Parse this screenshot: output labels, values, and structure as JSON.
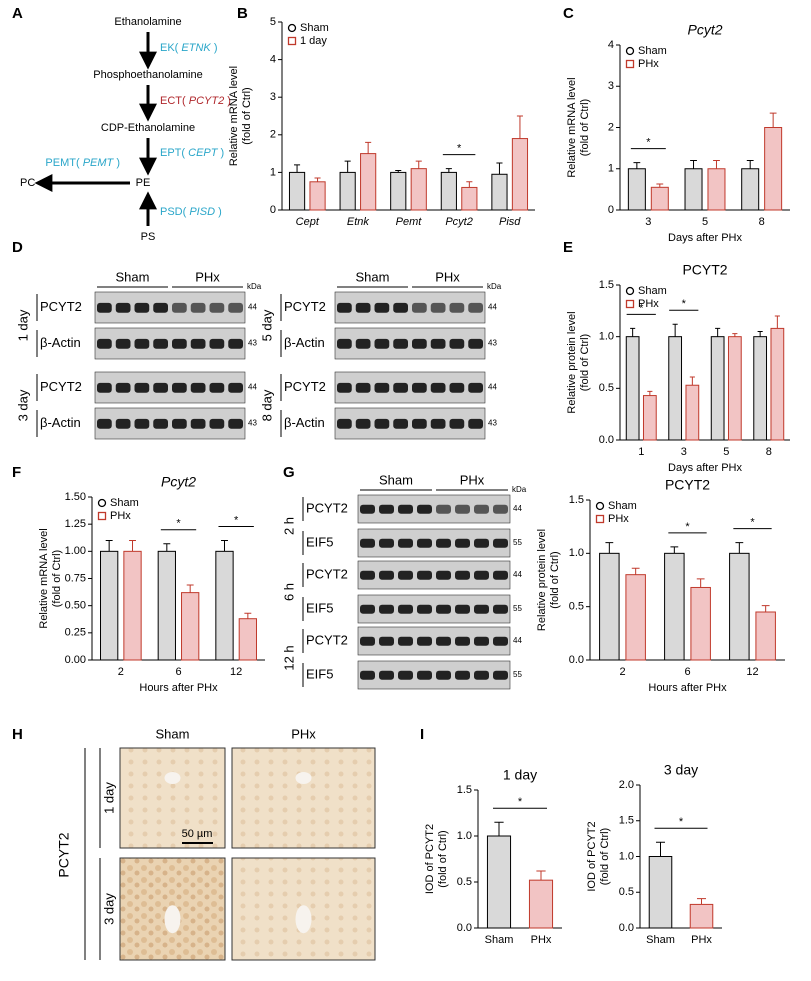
{
  "panels": [
    "A",
    "B",
    "C",
    "D",
    "E",
    "F",
    "G",
    "H",
    "I"
  ],
  "pathway": {
    "nodes": [
      "Ethanolamine",
      "Phosphoethanolamine",
      "CDP-Ethanolamine",
      "PE",
      "PC",
      "PS"
    ],
    "enzymes": [
      {
        "open": "EK(",
        "gene": "ETNK",
        "close": ")",
        "color": "#2aa6c9"
      },
      {
        "open": "ECT(",
        "gene": "PCYT2",
        "close": ")",
        "color": "#b0282d"
      },
      {
        "open": "EPT(",
        "gene": "CEPT",
        "close": ")",
        "color": "#2aa6c9"
      },
      {
        "open": "PEMT(",
        "gene": "PEMT",
        "close": ")",
        "color": "#2aa6c9"
      },
      {
        "open": "PSD(",
        "gene": "PISD",
        "close": ")",
        "color": "#2aa6c9"
      }
    ]
  },
  "blots_d": {
    "left": {
      "groups": [
        "Sham",
        "PHx"
      ],
      "unit": "kDa",
      "blocks": [
        {
          "time": "1 day",
          "rows": [
            {
              "protein": "PCYT2",
              "kda": 44
            },
            {
              "protein": "β-Actin",
              "kda": 43
            }
          ]
        },
        {
          "time": "3 day",
          "rows": [
            {
              "protein": "PCYT2",
              "kda": 44
            },
            {
              "protein": "β-Actin",
              "kda": 43
            }
          ]
        }
      ]
    },
    "right": {
      "groups": [
        "Sham",
        "PHx"
      ],
      "unit": "kDa",
      "blocks": [
        {
          "time": "5 day",
          "rows": [
            {
              "protein": "PCYT2",
              "kda": 44
            },
            {
              "protein": "β-Actin",
              "kda": 43
            }
          ]
        },
        {
          "time": "8 day",
          "rows": [
            {
              "protein": "PCYT2",
              "kda": 44
            },
            {
              "protein": "β-Actin",
              "kda": 43
            }
          ]
        }
      ]
    }
  },
  "blots_g": {
    "groups": [
      "Sham",
      "PHx"
    ],
    "unit": "kDa",
    "blocks": [
      {
        "time": "2 h",
        "rows": [
          {
            "protein": "PCYT2",
            "kda": 44
          },
          {
            "protein": "EIF5",
            "kda": 55
          }
        ]
      },
      {
        "time": "6 h",
        "rows": [
          {
            "protein": "PCYT2",
            "kda": 44
          },
          {
            "protein": "EIF5",
            "kda": 55
          }
        ]
      },
      {
        "time": "12 h",
        "rows": [
          {
            "protein": "PCYT2",
            "kda": 44
          },
          {
            "protein": "EIF5",
            "kda": 55
          }
        ]
      }
    ]
  },
  "histology": {
    "columns": [
      "Sham",
      "PHx"
    ],
    "rows": [
      "1 day",
      "3 day"
    ],
    "stain": "PCYT2",
    "scale": "50 µm"
  },
  "chart_data": [
    {
      "type": "bar",
      "ylabel": [
        "Relative mRNA level",
        "(fold of Ctrl)"
      ],
      "categories": [
        "Cept",
        "Etnk",
        "Pemt",
        "Pcyt2",
        "Pisd"
      ],
      "category_italic": true,
      "series": [
        {
          "name": "Sham",
          "color": "#000000",
          "fill": "#d9d9d9",
          "marker": "circle",
          "values": [
            1.0,
            1.0,
            1.0,
            1.0,
            0.95
          ],
          "errors": [
            0.2,
            0.3,
            0.05,
            0.1,
            0.3
          ]
        },
        {
          "name": "1 day",
          "color": "#c0392b",
          "fill": "#f2c4c4",
          "marker": "square",
          "values": [
            0.75,
            1.5,
            1.1,
            0.6,
            1.9
          ],
          "errors": [
            0.1,
            0.3,
            0.2,
            0.15,
            0.6
          ]
        }
      ],
      "ylim": [
        0,
        5
      ],
      "yticks": [
        0,
        1,
        2,
        3,
        4,
        5
      ],
      "annotations": [
        {
          "text": "*",
          "category": "Pcyt2"
        }
      ]
    },
    {
      "type": "bar",
      "title": "Pcyt2",
      "title_italic": true,
      "ylabel": [
        "Relative mRNA level",
        "(fold of Ctrl)"
      ],
      "xlabel": "Days after PHx",
      "categories": [
        "3",
        "5",
        "8"
      ],
      "series": [
        {
          "name": "Sham",
          "color": "#000000",
          "fill": "#d9d9d9",
          "marker": "circle",
          "values": [
            1.0,
            1.0,
            1.0
          ],
          "errors": [
            0.15,
            0.2,
            0.2
          ]
        },
        {
          "name": "PHx",
          "color": "#c0392b",
          "fill": "#f2c4c4",
          "marker": "square",
          "values": [
            0.55,
            1.0,
            2.0
          ],
          "errors": [
            0.08,
            0.2,
            0.35
          ]
        }
      ],
      "ylim": [
        0,
        4
      ],
      "yticks": [
        0,
        1,
        2,
        3,
        4
      ],
      "annotations": [
        {
          "text": "*",
          "category": "3"
        }
      ]
    },
    {
      "type": "bar",
      "title": "PCYT2",
      "ylabel": [
        "Relative protein level",
        "(fold of Ctrl)"
      ],
      "xlabel": "Days after PHx",
      "categories": [
        "1",
        "3",
        "5",
        "8"
      ],
      "series": [
        {
          "name": "Sham",
          "color": "#000000",
          "fill": "#d9d9d9",
          "marker": "circle",
          "values": [
            1.0,
            1.0,
            1.0,
            1.0
          ],
          "errors": [
            0.08,
            0.12,
            0.08,
            0.05
          ]
        },
        {
          "name": "PHx",
          "color": "#c0392b",
          "fill": "#f2c4c4",
          "marker": "square",
          "values": [
            0.43,
            0.53,
            1.0,
            1.08
          ],
          "errors": [
            0.04,
            0.08,
            0.03,
            0.12
          ]
        }
      ],
      "ylim": [
        0,
        1.5
      ],
      "yticks": [
        {
          "value": 0,
          "label": "0.0"
        },
        {
          "value": 0.5,
          "label": "0.5"
        },
        {
          "value": 1,
          "label": "1.0"
        },
        {
          "value": 1.5,
          "label": "1.5"
        }
      ],
      "annotations": [
        {
          "text": "*",
          "category": "1"
        },
        {
          "text": "*",
          "category": "3"
        }
      ]
    },
    {
      "type": "bar",
      "title": "Pcyt2",
      "title_italic": true,
      "ylabel": [
        "Relative mRNA level",
        "(fold of Ctrl)"
      ],
      "xlabel": "Hours after PHx",
      "categories": [
        "2",
        "6",
        "12"
      ],
      "series": [
        {
          "name": "Sham",
          "color": "#000000",
          "fill": "#d9d9d9",
          "marker": "circle",
          "values": [
            1.0,
            1.0,
            1.0
          ],
          "errors": [
            0.1,
            0.07,
            0.1
          ]
        },
        {
          "name": "PHx",
          "color": "#c0392b",
          "fill": "#f2c4c4",
          "marker": "square",
          "values": [
            1.0,
            0.62,
            0.38
          ],
          "errors": [
            0.1,
            0.07,
            0.05
          ]
        }
      ],
      "ylim": [
        0,
        1.5
      ],
      "yticks": [
        {
          "value": 0,
          "label": "0.00"
        },
        {
          "value": 0.25,
          "label": "0.25"
        },
        {
          "value": 0.5,
          "label": "0.50"
        },
        {
          "value": 0.75,
          "label": "0.75"
        },
        {
          "value": 1,
          "label": "1.00"
        },
        {
          "value": 1.25,
          "label": "1.25"
        },
        {
          "value": 1.5,
          "label": "1.50"
        }
      ],
      "annotations": [
        {
          "text": "*",
          "category": "6"
        },
        {
          "text": "*",
          "category": "12"
        }
      ]
    },
    {
      "type": "bar",
      "title": "PCYT2",
      "ylabel": [
        "Relative protein level",
        "(fold of Ctrl)"
      ],
      "xlabel": "Hours after PHx",
      "categories": [
        "2",
        "6",
        "12"
      ],
      "series": [
        {
          "name": "Sham",
          "color": "#000000",
          "fill": "#d9d9d9",
          "marker": "circle",
          "values": [
            1.0,
            1.0,
            1.0
          ],
          "errors": [
            0.1,
            0.06,
            0.1
          ]
        },
        {
          "name": "PHx",
          "color": "#c0392b",
          "fill": "#f2c4c4",
          "marker": "square",
          "values": [
            0.8,
            0.68,
            0.45
          ],
          "errors": [
            0.06,
            0.08,
            0.06
          ]
        }
      ],
      "ylim": [
        0,
        1.5
      ],
      "yticks": [
        {
          "value": 0,
          "label": "0.0"
        },
        {
          "value": 0.5,
          "label": "0.5"
        },
        {
          "value": 1,
          "label": "1.0"
        },
        {
          "value": 1.5,
          "label": "1.5"
        }
      ],
      "annotations": [
        {
          "text": "*",
          "category": "6"
        },
        {
          "text": "*",
          "category": "12"
        }
      ]
    },
    {
      "type": "bar",
      "title": "1 day",
      "ylabel": [
        "IOD of PCYT2",
        "(fold of Ctrl)"
      ],
      "categories": [
        "Sham",
        "PHx"
      ],
      "values": [
        1.0,
        0.52
      ],
      "errors": [
        0.15,
        0.1
      ],
      "colors": [
        "#000000",
        "#c0392b"
      ],
      "fills": [
        "#d9d9d9",
        "#f2c4c4"
      ],
      "ylim": [
        0,
        1.5
      ],
      "yticks": [
        {
          "value": 0,
          "label": "0.0"
        },
        {
          "value": 0.5,
          "label": "0.5"
        },
        {
          "value": 1,
          "label": "1.0"
        },
        {
          "value": 1.5,
          "label": "1.5"
        }
      ],
      "annotations": [
        {
          "text": "*"
        }
      ]
    },
    {
      "type": "bar",
      "title": "3 day",
      "ylabel": [
        "IOD of PCYT2",
        "(fold of Ctrl)"
      ],
      "categories": [
        "Sham",
        "PHx"
      ],
      "values": [
        1.0,
        0.33
      ],
      "errors": [
        0.2,
        0.08
      ],
      "colors": [
        "#000000",
        "#c0392b"
      ],
      "fills": [
        "#d9d9d9",
        "#f2c4c4"
      ],
      "ylim": [
        0,
        2
      ],
      "yticks": [
        {
          "value": 0,
          "label": "0.0"
        },
        {
          "value": 0.5,
          "label": "0.5"
        },
        {
          "value": 1,
          "label": "1.0"
        },
        {
          "value": 1.5,
          "label": "1.5"
        },
        {
          "value": 2,
          "label": "2.0"
        }
      ],
      "annotations": [
        {
          "text": "*"
        }
      ]
    }
  ]
}
